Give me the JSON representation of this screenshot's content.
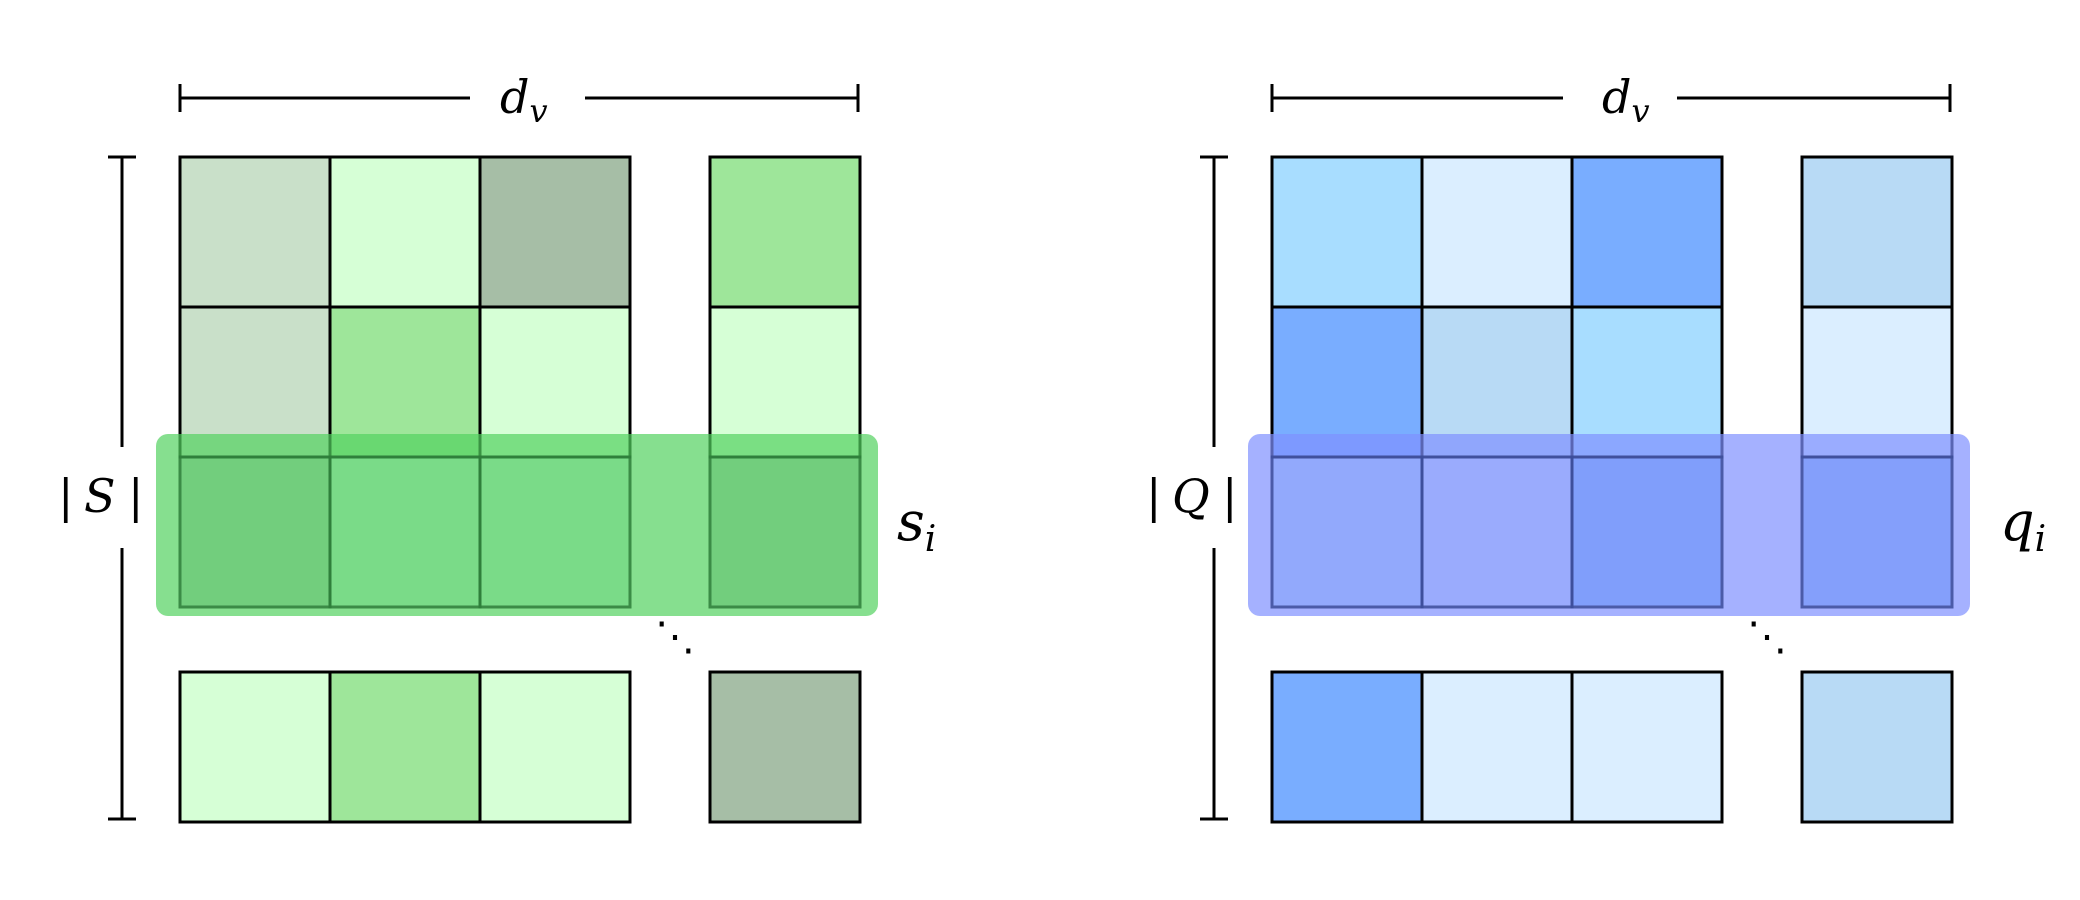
{
  "panels": [
    {
      "id": "support",
      "width_label": "d",
      "width_sub": "v",
      "height_label_left": "|",
      "height_label_sym": "S",
      "height_label_right": "|",
      "row_label": "s",
      "row_sub": "i",
      "highlight_color": "#52d160",
      "rows": [
        [
          "#c9e0c9",
          "#d6ffd6",
          "#a6bea6",
          "#9ee69a"
        ],
        [
          "#c9e0c9",
          "#9ee69a",
          "#d6ffd6",
          "#d6ffd6"
        ],
        [
          "#6fcc7b",
          "#79db87",
          "#79db87",
          "#6fcc7b"
        ],
        [
          "#d6ffd6",
          "#9ee69a",
          "#d6ffd6",
          "#a6bea6"
        ]
      ],
      "highlight_stroke": "#2e7d3a"
    },
    {
      "id": "query",
      "width_label": "d",
      "width_sub": "v",
      "height_label_left": "|",
      "height_label_sym": "Q",
      "height_label_right": "|",
      "row_label": "q",
      "row_sub": "i",
      "highlight_color": "#7f90ff",
      "rows": [
        [
          "#a8ddff",
          "#dbeeff",
          "#79adff",
          "#b8daf5"
        ],
        [
          "#79adff",
          "#b8daf5",
          "#a8ddff",
          "#dbeeff"
        ],
        [
          "#8fa8fc",
          "#99abfd",
          "#7a9bfb",
          "#7f9cfb"
        ],
        [
          "#79adff",
          "#dbeeff",
          "#dbeeff",
          "#b8daf5"
        ]
      ],
      "highlight_stroke": "#3c4d9a"
    }
  ],
  "ellipsis": "⋱"
}
